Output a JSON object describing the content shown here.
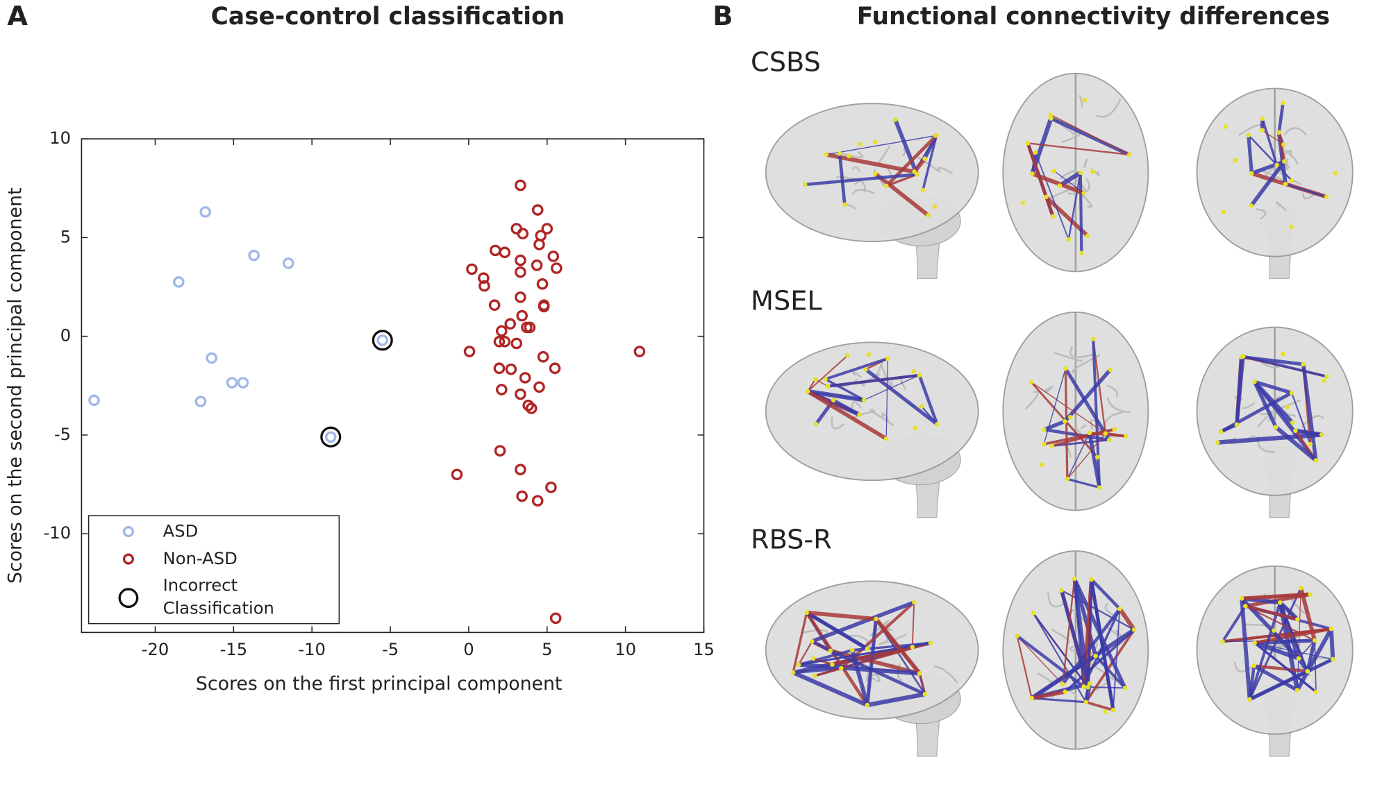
{
  "chart_data": {
    "type": "scatter",
    "panel_label": "A",
    "title": "Case-control classification",
    "x_label": "Scores on the first principal component",
    "y_label": "Scores on the second principal component",
    "xlim": [
      -24.7,
      15
    ],
    "ylim": [
      -15,
      10
    ],
    "xticks": [
      -20,
      -15,
      -10,
      -5,
      0,
      5,
      10,
      15
    ],
    "yticks": [
      -10,
      -5,
      0,
      5,
      10
    ],
    "legend": "lower left",
    "series": [
      {
        "name": "ASD",
        "color": "#9fb8e6",
        "x": [
          -23.9,
          -16.8,
          -18.5,
          -13.7,
          -11.5,
          -16.4,
          -17.1,
          -15.1,
          -14.4,
          -5.5,
          -8.8
        ],
        "y": [
          -3.24,
          6.3,
          2.75,
          4.1,
          3.7,
          -1.1,
          -3.3,
          -2.35,
          -2.35,
          -0.2,
          -5.1
        ]
      },
      {
        "name": "Non-ASD",
        "color": "#b02525",
        "x": [
          3.3,
          4.4,
          3.05,
          3.45,
          5.0,
          4.6,
          4.5,
          5.4,
          1.7,
          2.3,
          3.3,
          0.2,
          0.95,
          1.0,
          4.35,
          5.6,
          3.3,
          4.7,
          3.3,
          1.65,
          4.8,
          4.8,
          3.4,
          2.65,
          3.7,
          3.9,
          2.1,
          1.95,
          2.3,
          3.05,
          0.05,
          4.75,
          5.5,
          1.95,
          2.7,
          3.6,
          2.1,
          3.3,
          4.5,
          3.8,
          4.0,
          2.0,
          3.3,
          -0.75,
          3.4,
          5.25,
          4.4,
          5.55,
          10.9
        ],
        "y": [
          7.65,
          6.4,
          5.45,
          5.2,
          5.45,
          5.1,
          4.65,
          4.05,
          4.35,
          4.25,
          3.85,
          3.4,
          2.95,
          2.55,
          3.6,
          3.45,
          3.25,
          2.65,
          1.98,
          1.58,
          1.58,
          1.5,
          1.04,
          0.63,
          0.45,
          0.45,
          0.27,
          -0.27,
          -0.27,
          -0.36,
          -0.77,
          -1.04,
          -1.62,
          -1.62,
          -1.67,
          -2.1,
          -2.7,
          -2.93,
          -2.57,
          -3.5,
          -3.65,
          -5.8,
          -6.75,
          -7.0,
          -8.1,
          -7.65,
          -8.33,
          -14.28,
          -0.77
        ]
      },
      {
        "name": "Incorrect Classification",
        "color": "#111111",
        "x": [
          -5.5,
          -8.8
        ],
        "y": [
          -0.2,
          -5.1
        ]
      }
    ]
  },
  "panel_b": {
    "panel_label": "B",
    "title": "Functional connectivity differences",
    "rows": [
      "CSBS",
      "MSEL",
      "RBS-R"
    ]
  }
}
